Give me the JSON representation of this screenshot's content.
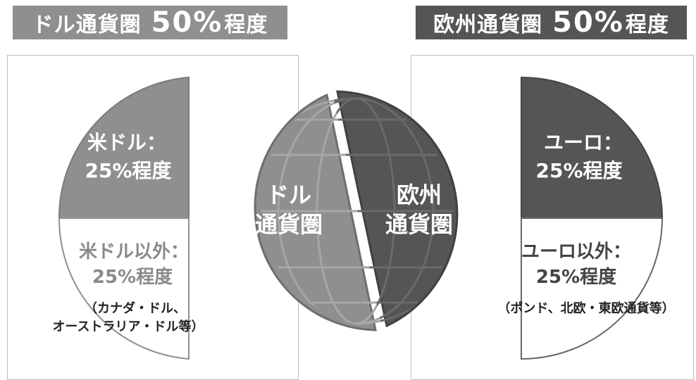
{
  "left": {
    "title": "ドル通貨圏",
    "share": "50%",
    "share_suffix": "程度",
    "upper_line1": "米ドル：",
    "upper_line2": "25%程度",
    "lower_line1": "米ドル以外：",
    "lower_line2": "25%程度",
    "note_line1": "（カナダ・ドル、",
    "note_line2": "オーストラリア・ドル等）"
  },
  "right": {
    "title": "欧州通貨圏",
    "share": "50%",
    "share_suffix": "程度",
    "upper_line1": "ユーロ：",
    "upper_line2": "25%程度",
    "lower_line1": "ユーロ以外：",
    "lower_line2": "25%程度",
    "note": "（ポンド、北欧・東欧通貨等）"
  },
  "globe": {
    "left_line1": "ドル",
    "left_line2": "通貨圏",
    "right_line1": "欧州",
    "right_line2": "通貨圏"
  },
  "colors": {
    "dark": "#555555",
    "mid": "#8f8f8f",
    "light_border": "#bdbdbd",
    "white": "#ffffff"
  }
}
